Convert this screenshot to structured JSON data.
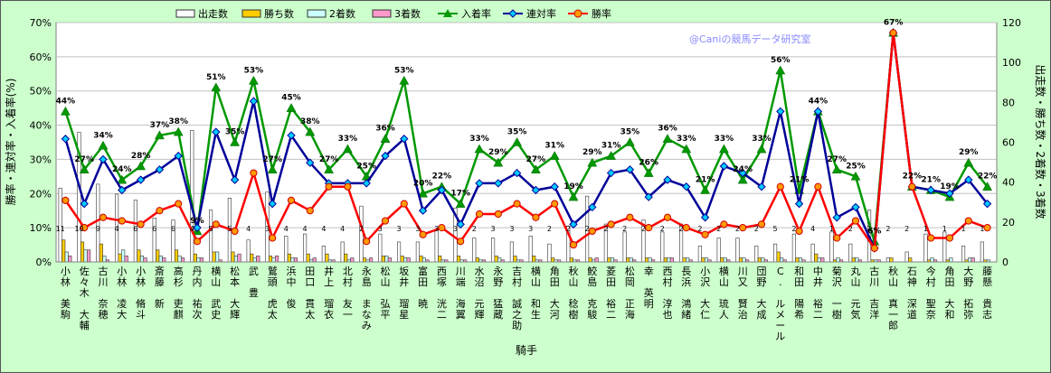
{
  "chart_data": {
    "type": "bar-line-combo",
    "credit": "@Caniの競馬データ研究室",
    "xlabel": "騎手",
    "ylabel_left": "勝率・連対率・入着率(%)",
    "ylabel_right": "出走数・勝ち数・2着数・3着数",
    "y_left_range": [
      0,
      70
    ],
    "y_left_ticks": [
      "0%",
      "10%",
      "20%",
      "30%",
      "40%",
      "50%",
      "60%",
      "70%"
    ],
    "y_right_range": [
      0,
      120
    ],
    "y_right_ticks": [
      "0",
      "20",
      "40",
      "60",
      "80",
      "100",
      "120"
    ],
    "grid": "horizontal",
    "legend_position": "top",
    "legend": {
      "starts": "出走数",
      "wins": "勝ち数",
      "second": "2着数",
      "third": "3着数",
      "place_rate": "入着率",
      "quinella_rate": "連対率",
      "win_rate": "勝率"
    },
    "colors": {
      "starts": "#ffffff",
      "wins": "#ffcc00",
      "second": "#ccffff",
      "third": "#ff99cc",
      "place_rate": "#009900",
      "quinella_rate": "#000099",
      "win_rate": "#ff0000",
      "background": "#ccffcc",
      "plot_background": "#ffffff"
    },
    "categories": [
      "小林 美駒",
      "佐々木 大輔",
      "古川 奈穂",
      "小林 凌大",
      "小林 脩斗",
      "斎藤 新",
      "高杉 吏麒",
      "丹内 祐次",
      "横山 武史",
      "松本 大輝",
      "武 豊",
      "鷲頭 虎太",
      "浜中 俊",
      "田口 貫太",
      "井上 瑠衣",
      "北村 友一",
      "永島 まなみ",
      "松山 弘平",
      "坂井 瑠星",
      "富田 暁",
      "西塚 洸二",
      "川端 海翼",
      "水沼 元輝",
      "永野 猛蔵",
      "吉村 誠之助",
      "横山 和生",
      "角田 大河",
      "秋山 稔樹",
      "鮫島 克駿",
      "菱田 裕二",
      "松岡 正海",
      "幸 英明",
      "西村 淳也",
      "長浜 鴻緒",
      "小沢 大仁",
      "横山 琉人",
      "川又 賢治",
      "団野 大成",
      "C. ルメール",
      "和田 陽希",
      "中井 裕二",
      "菊沢 一樹",
      "丸山 元気",
      "古川 吉洋",
      "秋山 真一郎",
      "石神 深道",
      "今村 聖奈",
      "角田 大和",
      "大野 拓弥",
      "藤懸 貴志"
    ],
    "starts": [
      37,
      65,
      39,
      34,
      31,
      22,
      21,
      66,
      26,
      32,
      11,
      35,
      13,
      14,
      8,
      10,
      28,
      14,
      10,
      10,
      16,
      27,
      12,
      12,
      10,
      13,
      9,
      18,
      33,
      19,
      15,
      21,
      15,
      19,
      8,
      12,
      12,
      8,
      9,
      14,
      9,
      15,
      9,
      26,
      2,
      5,
      14,
      15,
      8,
      10
    ],
    "wins": [
      11,
      10,
      9,
      4,
      6,
      6,
      6,
      4,
      5,
      5,
      4,
      3,
      4,
      4,
      4,
      4,
      2,
      3,
      3,
      3,
      3,
      3,
      2,
      3,
      3,
      3,
      2,
      2,
      2,
      2,
      2,
      2,
      2,
      2,
      2,
      2,
      2,
      2,
      5,
      2,
      4,
      1,
      2,
      1,
      2,
      2,
      1,
      1,
      1,
      1
    ],
    "second": [
      5,
      6,
      3,
      6,
      3,
      3,
      3,
      2,
      5,
      3,
      2,
      2,
      2,
      1,
      1,
      1,
      1,
      3,
      2,
      2,
      1,
      1,
      1,
      2,
      1,
      1,
      1,
      1,
      1,
      2,
      2,
      2,
      2,
      2,
      2,
      2,
      2,
      2,
      2,
      2,
      2,
      2,
      2,
      1,
      0,
      0,
      2,
      2,
      2,
      1
    ],
    "third": [
      3,
      6,
      1,
      3,
      2,
      2,
      2,
      2,
      1,
      4,
      3,
      3,
      2,
      2,
      1,
      2,
      2,
      2,
      2,
      1,
      1,
      1,
      1,
      1,
      1,
      1,
      1,
      1,
      2,
      1,
      1,
      1,
      2,
      1,
      1,
      1,
      1,
      1,
      1,
      1,
      2,
      1,
      1,
      1,
      0,
      0,
      1,
      0,
      2,
      0
    ],
    "place_rate": [
      44,
      27,
      34,
      24,
      28,
      37,
      38,
      9,
      51,
      35,
      53,
      27,
      45,
      38,
      27,
      33,
      25,
      36,
      53,
      20,
      22,
      17,
      33,
      29,
      35,
      27,
      31,
      19,
      29,
      31,
      35,
      26,
      36,
      33,
      21,
      33,
      24,
      33,
      56,
      21,
      44,
      27,
      25,
      6,
      67,
      22,
      21,
      19,
      29,
      22
    ],
    "quinella_rate": [
      36,
      17,
      30,
      21,
      24,
      27,
      31,
      10,
      38,
      24,
      47,
      17,
      37,
      29,
      23,
      23,
      23,
      31,
      36,
      15,
      21,
      11,
      23,
      23,
      26,
      21,
      22,
      11,
      16,
      26,
      27,
      19,
      24,
      22,
      13,
      28,
      26,
      22,
      44,
      17,
      44,
      13,
      16,
      4,
      67,
      22,
      21,
      20,
      24,
      17
    ],
    "win_rate": [
      18,
      10,
      13,
      12,
      11,
      15,
      17,
      6,
      11,
      9,
      26,
      7,
      18,
      15,
      22,
      22,
      6,
      12,
      17,
      8,
      10,
      6,
      14,
      14,
      17,
      13,
      17,
      5,
      9,
      11,
      13,
      10,
      13,
      10,
      8,
      11,
      10,
      11,
      22,
      9,
      22,
      7,
      12,
      4,
      67,
      22,
      7,
      7,
      12,
      10
    ],
    "place_rate_labels": [
      "44%",
      "27%",
      "34%",
      "24%",
      "28%",
      "37%",
      "38%",
      "9%",
      "51%",
      "35%",
      "53%",
      "27%",
      "45%",
      "38%",
      "27%",
      "33%",
      "25%",
      "36%",
      "53%",
      "20%",
      "22%",
      "17%",
      "33%",
      "29%",
      "35%",
      "27%",
      "31%",
      "19%",
      "29%",
      "31%",
      "35%",
      "26%",
      "36%",
      "33%",
      "21%",
      "33%",
      "24%",
      "33%",
      "56%",
      "21%",
      "44%",
      "27%",
      "25%",
      "6%",
      "67%",
      "22%",
      "21%",
      "19%",
      "29%",
      "22%"
    ],
    "win_labels": [
      "11",
      "10",
      "9",
      "4",
      "6",
      "6",
      "6",
      "4",
      "5",
      "5",
      "4",
      "3",
      "4",
      "4",
      "4",
      "4",
      "2",
      "3",
      "3",
      "3",
      "3",
      "3",
      "2",
      "3",
      "3",
      "3",
      "2",
      "2",
      "2",
      "2",
      "2",
      "2",
      "2",
      "2",
      "2",
      "2",
      "2",
      "2",
      "5",
      "2",
      "4",
      "1",
      "2",
      "1",
      "2",
      "2",
      "1",
      "1",
      "1",
      "1"
    ]
  }
}
